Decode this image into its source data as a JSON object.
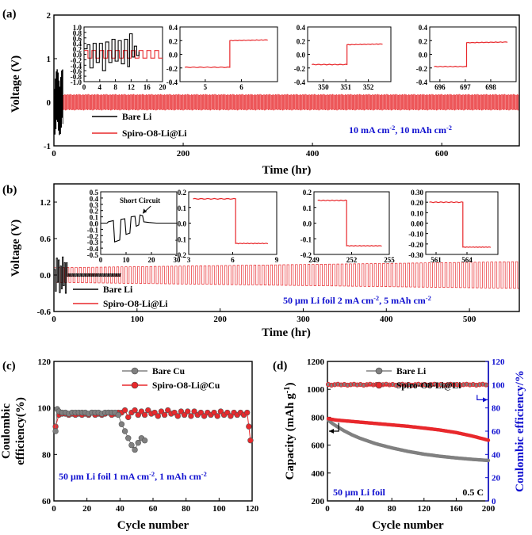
{
  "colors": {
    "red": "#e8282c",
    "black": "#000000",
    "gray": "#808080",
    "blue": "#1010d0"
  },
  "chart_data": [
    {
      "id": "a",
      "type": "line",
      "panel_label": "(a)",
      "xlabel": "Time (hr)",
      "ylabel": "Voltage (V)",
      "xlim": [
        0,
        720
      ],
      "ylim": [
        -1,
        2
      ],
      "xticks": [
        0,
        200,
        400,
        600
      ],
      "yticks": [
        -1,
        0,
        1,
        2
      ],
      "series": [
        {
          "name": "Bare Li",
          "color": "black",
          "t_end": 14,
          "amplitude_max": 0.75
        },
        {
          "name": "Spiro-O8-Li@Li",
          "color": "red",
          "t_end": 720,
          "amplitude": 0.17
        }
      ],
      "conditions": "10 mA cm⁻², 10 mAh cm⁻²",
      "insets": [
        {
          "xlim": [
            0,
            20
          ],
          "ylim": [
            -1.0,
            1.0
          ],
          "xticks": [
            0,
            4,
            8,
            12,
            16,
            20
          ],
          "yticks": [
            -1.0,
            -0.8,
            -0.6,
            -0.4,
            -0.2,
            0.0,
            0.2,
            0.4,
            0.6,
            0.8,
            1.0
          ],
          "ytick_labels": [
            "-1.0",
            "-0.8",
            "-0.6",
            "-0.4",
            "-0.2",
            "0.0",
            "0.2",
            "0.4",
            "0.6",
            "0.8",
            "1.0"
          ],
          "kind": "cycles",
          "black_points": [
            [
              0,
              0.2
            ],
            [
              0.8,
              0.35
            ],
            [
              1.5,
              -0.5
            ],
            [
              2.3,
              0.4
            ],
            [
              3.1,
              -0.3
            ],
            [
              3.9,
              0.4
            ],
            [
              4.7,
              -0.6
            ],
            [
              5.5,
              0.45
            ],
            [
              6.3,
              -0.3
            ],
            [
              7.1,
              0.55
            ],
            [
              7.9,
              -0.25
            ],
            [
              8.7,
              0.5
            ],
            [
              9.5,
              -0.35
            ],
            [
              10.3,
              0.55
            ],
            [
              11.1,
              -0.45
            ],
            [
              11.6,
              0.75
            ],
            [
              12.3,
              -0.1
            ],
            [
              12.8,
              0.3
            ],
            [
              13.4,
              -0.05
            ],
            [
              14.0,
              0.1
            ]
          ],
          "red_amplitude": 0.14,
          "red_half_period": 1.0
        },
        {
          "xlim": [
            4.3,
            7.0
          ],
          "ylim": [
            -0.4,
            0.4
          ],
          "xticks": [
            5,
            6
          ],
          "yticks": [
            -0.4,
            -0.2,
            0.0,
            0.2,
            0.4
          ],
          "ytick_labels": [
            "-0.4",
            "-0.2",
            "0.0",
            "0.2",
            "0.4"
          ],
          "kind": "step",
          "x_step": 5.68,
          "y_before": -0.19,
          "y_after": 0.2
        },
        {
          "xlim": [
            349.3,
            353.0
          ],
          "ylim": [
            -0.4,
            0.4
          ],
          "xticks": [
            350,
            351,
            352
          ],
          "yticks": [
            -0.4,
            -0.2,
            0.0,
            0.2,
            0.4
          ],
          "ytick_labels": [
            "-0.4",
            "-0.2",
            "0.0",
            "0.2",
            "0.4"
          ],
          "kind": "step",
          "x_step": 351.05,
          "y_before": -0.15,
          "y_after": 0.14
        },
        {
          "xlim": [
            695.6,
            699.0
          ],
          "ylim": [
            -0.4,
            0.4
          ],
          "xticks": [
            696,
            697,
            698
          ],
          "yticks": [
            -0.4,
            -0.2,
            0.0,
            0.2,
            0.4
          ],
          "ytick_labels": [
            "-0.4",
            "-0.2",
            "0.0",
            "0.2",
            "0.4"
          ],
          "kind": "step",
          "x_step": 697.05,
          "y_before": -0.18,
          "y_after": 0.17
        }
      ]
    },
    {
      "id": "b",
      "type": "line",
      "panel_label": "(b)",
      "xlabel": "Time (hr)",
      "ylabel": "Voltage (V)",
      "xlim": [
        0,
        560
      ],
      "ylim": [
        -0.6,
        1.5
      ],
      "xticks": [
        0,
        100,
        200,
        300,
        400,
        500
      ],
      "yticks": [
        -0.6,
        0.0,
        0.6,
        1.2
      ],
      "ytick_labels": [
        "-0.6",
        "0.0",
        "0.6",
        "1.2"
      ],
      "series": [
        {
          "name": "Bare Li",
          "color": "black",
          "t_end": 80,
          "amplitude_max": 0.3
        },
        {
          "name": "Spiro-O8-Li@Li",
          "color": "red",
          "t_end": 560,
          "amplitude_start": 0.12,
          "amplitude_end": 0.22,
          "half_period": 2.5
        }
      ],
      "conditions": "50 μm Li foil   2 mA cm⁻², 5 mAh cm⁻²",
      "insets": [
        {
          "xlim": [
            0,
            30
          ],
          "ylim": [
            -0.5,
            0.5
          ],
          "xticks": [
            0,
            10,
            20,
            30
          ],
          "yticks": [
            -0.5,
            -0.4,
            -0.3,
            -0.2,
            -0.1,
            0.0,
            0.1,
            0.2,
            0.3,
            0.4,
            0.5
          ],
          "ytick_labels": [
            "-0.5",
            "-0.4",
            "-0.3",
            "-0.2",
            "-0.1",
            "0.0",
            "0.1",
            "0.2",
            "0.3",
            "0.4",
            "0.5"
          ],
          "kind": "short",
          "annotation": "Short Circuit",
          "black_points": [
            [
              0,
              0.0
            ],
            [
              2.5,
              0.0
            ],
            [
              3.0,
              0.02
            ],
            [
              5.0,
              0.04
            ],
            [
              5.5,
              -0.3
            ],
            [
              7.5,
              -0.27
            ],
            [
              8.0,
              0.06
            ],
            [
              9.5,
              0.07
            ],
            [
              10.0,
              -0.18
            ],
            [
              11.5,
              -0.16
            ],
            [
              12.0,
              0.1
            ],
            [
              13.5,
              0.11
            ],
            [
              14.0,
              -0.05
            ],
            [
              15.0,
              -0.03
            ],
            [
              15.5,
              0.13
            ],
            [
              16.5,
              0.12
            ],
            [
              17.0,
              0.02
            ],
            [
              19.0,
              0.01
            ],
            [
              22.0,
              0.0
            ],
            [
              30.0,
              0.0
            ]
          ]
        },
        {
          "xlim": [
            3,
            9
          ],
          "ylim": [
            -0.2,
            0.2
          ],
          "xticks": [
            3,
            6,
            9
          ],
          "yticks": [
            -0.2,
            -0.1,
            0.0,
            0.1,
            0.2
          ],
          "ytick_labels": [
            "-0.2",
            "-0.1",
            "0.0",
            "0.1",
            "0.2"
          ],
          "kind": "stepdown",
          "x_step": 6.2,
          "y_before": 0.155,
          "y_after": -0.13
        },
        {
          "xlim": [
            249,
            255
          ],
          "ylim": [
            -0.2,
            0.2
          ],
          "xticks": [
            249,
            252,
            255
          ],
          "yticks": [
            -0.2,
            -0.1,
            0.0,
            0.1,
            0.2
          ],
          "ytick_labels": [
            "-0.2",
            "-0.1",
            "0.0",
            "0.1",
            "0.2"
          ],
          "kind": "stepdown",
          "x_step": 251.6,
          "y_before": 0.145,
          "y_after": -0.145
        },
        {
          "xlim": [
            560,
            567
          ],
          "ylim": [
            -0.3,
            0.3
          ],
          "xticks": [
            561,
            564
          ],
          "yticks": [
            -0.3,
            -0.2,
            -0.1,
            0.0,
            0.1,
            0.2,
            0.3
          ],
          "ytick_labels": [
            "-0.30",
            "-0.20",
            "-0.10",
            "0.00",
            "0.10",
            "0.20",
            "0.30"
          ],
          "kind": "stepdown",
          "x_step": 563.6,
          "y_before": 0.2,
          "y_after": -0.23
        }
      ]
    },
    {
      "id": "c",
      "type": "scatter",
      "panel_label": "(c)",
      "xlabel": "Cycle number",
      "ylabel": "Coulombic efficiency(%)",
      "xlim": [
        0,
        120
      ],
      "ylim": [
        60,
        120
      ],
      "xticks": [
        0,
        20,
        40,
        60,
        80,
        100,
        120
      ],
      "yticks": [
        60,
        80,
        100,
        120
      ],
      "conditions": "50 μm Li foil   1 mA cm⁻², 1 mAh cm⁻²",
      "series": [
        {
          "name": "Bare Cu",
          "color": "gray",
          "points": [
            [
              1,
              90
            ],
            [
              2,
              99.5
            ],
            [
              3,
              98.5
            ],
            [
              5,
              98
            ],
            [
              7,
              98
            ],
            [
              9,
              97.5
            ],
            [
              11,
              98
            ],
            [
              13,
              98
            ],
            [
              15,
              98
            ],
            [
              17,
              98
            ],
            [
              19,
              98
            ],
            [
              21,
              97.5
            ],
            [
              23,
              98
            ],
            [
              25,
              98
            ],
            [
              27,
              98
            ],
            [
              29,
              97.5
            ],
            [
              31,
              98
            ],
            [
              33,
              98
            ],
            [
              35,
              98
            ],
            [
              37,
              98
            ],
            [
              39,
              97
            ],
            [
              41,
              93
            ],
            [
              43,
              90
            ],
            [
              45,
              87
            ],
            [
              47,
              84
            ],
            [
              49,
              82
            ],
            [
              51,
              85
            ],
            [
              53,
              87
            ],
            [
              55,
              86
            ]
          ]
        },
        {
          "name": "Spiro-O8-Li@Cu",
          "color": "red",
          "points": [
            [
              1,
              92
            ],
            [
              3,
              97
            ],
            [
              5,
              97.5
            ],
            [
              7,
              97.5
            ],
            [
              9,
              97
            ],
            [
              11,
              97.5
            ],
            [
              13,
              97
            ],
            [
              15,
              97.5
            ],
            [
              17,
              97
            ],
            [
              19,
              97.5
            ],
            [
              21,
              97
            ],
            [
              23,
              98
            ],
            [
              25,
              97
            ],
            [
              27,
              97.5
            ],
            [
              29,
              97
            ],
            [
              31,
              97.5
            ],
            [
              33,
              98
            ],
            [
              35,
              97
            ],
            [
              37,
              97.5
            ],
            [
              39,
              98
            ],
            [
              41,
              98
            ],
            [
              43,
              99
            ],
            [
              45,
              96
            ],
            [
              47,
              98
            ],
            [
              49,
              99
            ],
            [
              51,
              97
            ],
            [
              53,
              98.5
            ],
            [
              55,
              97
            ],
            [
              57,
              99
            ],
            [
              59,
              97.5
            ],
            [
              61,
              98
            ],
            [
              63,
              96.5
            ],
            [
              65,
              98.5
            ],
            [
              67,
              97
            ],
            [
              69,
              99
            ],
            [
              71,
              97.5
            ],
            [
              73,
              98
            ],
            [
              75,
              96.5
            ],
            [
              77,
              98.5
            ],
            [
              79,
              97
            ],
            [
              81,
              98.5
            ],
            [
              83,
              96.5
            ],
            [
              85,
              98.5
            ],
            [
              87,
              97
            ],
            [
              89,
              98
            ],
            [
              91,
              96.5
            ],
            [
              93,
              98
            ],
            [
              95,
              97
            ],
            [
              97,
              98
            ],
            [
              99,
              96.5
            ],
            [
              101,
              98.5
            ],
            [
              103,
              97
            ],
            [
              105,
              98
            ],
            [
              107,
              96.5
            ],
            [
              109,
              98
            ],
            [
              111,
              97
            ],
            [
              113,
              98
            ],
            [
              115,
              97
            ],
            [
              117,
              98
            ],
            [
              118,
              92
            ],
            [
              119,
              86
            ]
          ]
        }
      ]
    },
    {
      "id": "d",
      "type": "scatter",
      "panel_label": "(d)",
      "xlabel": "Cycle number",
      "ylabel": "Capacity (mAh g⁻¹)",
      "ylabel_right": "Coulombic efficiency/%",
      "xlim": [
        0,
        200
      ],
      "ylim": [
        200,
        1200
      ],
      "ylim_right": [
        0,
        120
      ],
      "xticks": [
        0,
        40,
        80,
        120,
        160,
        200
      ],
      "yticks": [
        200,
        400,
        600,
        800,
        1000,
        1200
      ],
      "yticks_right": [
        0,
        20,
        40,
        60,
        80,
        100,
        120
      ],
      "conditions": "50 μm Li foil",
      "rate": "0.5 C",
      "series": [
        {
          "name": "Bare Li",
          "color": "gray",
          "capacity": [
            [
              1,
              780
            ],
            [
              5,
              760
            ],
            [
              10,
              740
            ],
            [
              20,
              705
            ],
            [
              30,
              675
            ],
            [
              40,
              650
            ],
            [
              60,
              610
            ],
            [
              80,
              580
            ],
            [
              100,
              555
            ],
            [
              120,
              535
            ],
            [
              140,
              520
            ],
            [
              160,
              508
            ],
            [
              180,
              498
            ],
            [
              200,
              490
            ]
          ],
          "coulombic_efficiency": [
            [
              1,
              100
            ],
            [
              200,
              100
            ]
          ]
        },
        {
          "name": "Spiro-O8-Li@Li",
          "color": "red",
          "capacity": [
            [
              1,
              790
            ],
            [
              10,
              780
            ],
            [
              20,
              775
            ],
            [
              40,
              765
            ],
            [
              60,
              755
            ],
            [
              80,
              745
            ],
            [
              100,
              735
            ],
            [
              120,
              722
            ],
            [
              140,
              708
            ],
            [
              160,
              690
            ],
            [
              180,
              665
            ],
            [
              200,
              635
            ]
          ],
          "coulombic_efficiency": [
            [
              1,
              100
            ],
            [
              200,
              100
            ]
          ]
        }
      ]
    }
  ]
}
